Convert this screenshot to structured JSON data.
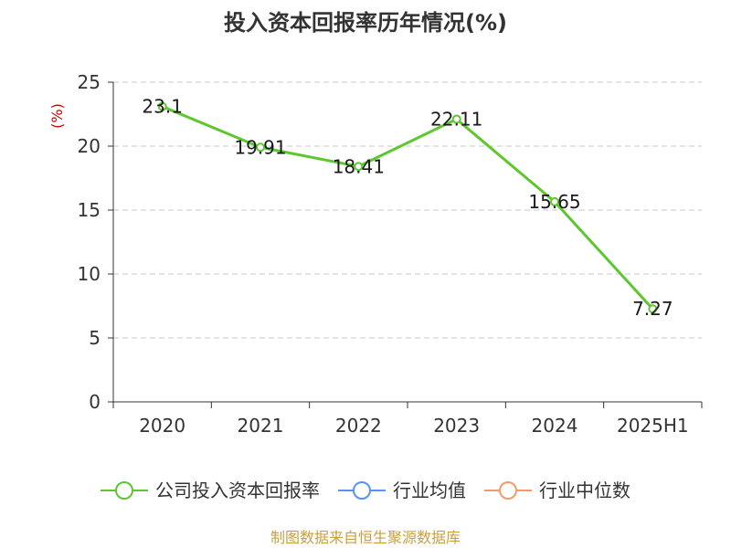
{
  "chart_data": {
    "type": "line",
    "title": "投入资本回报率历年情况(%)",
    "ylabel": "(%)",
    "categories": [
      "2020",
      "2021",
      "2022",
      "2023",
      "2024",
      "2025H1"
    ],
    "ylim": [
      0,
      25
    ],
    "yticks": [
      0,
      5,
      10,
      15,
      20,
      25
    ],
    "grid": true,
    "legend_position": "bottom",
    "series": [
      {
        "name": "公司投入资本回报率",
        "color": "#5cc72e",
        "values": [
          23.1,
          19.91,
          18.41,
          22.11,
          15.65,
          7.27
        ],
        "labels": [
          "23.1",
          "19.91",
          "18.41",
          "22.11",
          "15.65",
          "7.27"
        ]
      }
    ],
    "legend": [
      {
        "name": "公司投入资本回报率",
        "color": "#5cc72e"
      },
      {
        "name": "行业均值",
        "color": "#5b8ff9"
      },
      {
        "name": "行业中位数",
        "color": "#f59a6b"
      }
    ]
  },
  "source": "制图数据来自恒生聚源数据库",
  "colors": {
    "axis": "#333333",
    "grid": "#c8c8c8",
    "unit": "#cc0000",
    "source": "#c8a040"
  }
}
